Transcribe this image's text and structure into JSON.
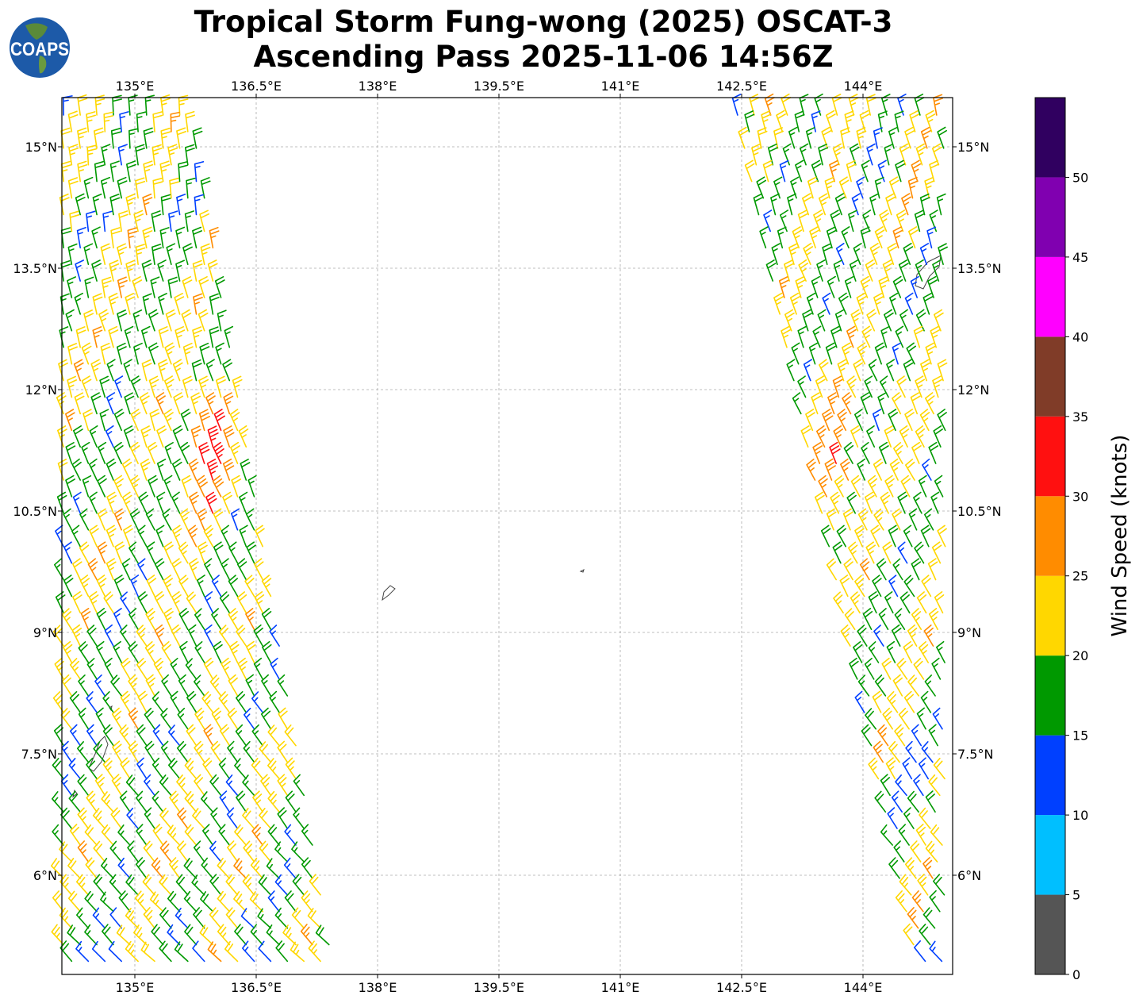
{
  "logo_text": "COAPS",
  "chart_data": {
    "type": "map-wind-barbs",
    "title_line1": "Tropical Storm Fung-wong (2025) OSCAT-3",
    "title_line2": "Ascending Pass 2025-11-06 14:56Z",
    "lon_range": [
      134.1,
      145.1
    ],
    "lat_range": [
      4.79,
      15.61
    ],
    "lon_ticks": [
      {
        "value": 135,
        "label": "135°E"
      },
      {
        "value": 136.5,
        "label": "136.5°E"
      },
      {
        "value": 138,
        "label": "138°E"
      },
      {
        "value": 139.5,
        "label": "139.5°E"
      },
      {
        "value": 141,
        "label": "141°E"
      },
      {
        "value": 142.5,
        "label": "142.5°E"
      },
      {
        "value": 144,
        "label": "144°E"
      }
    ],
    "lat_ticks": [
      {
        "value": 15,
        "label": "15°N"
      },
      {
        "value": 13.5,
        "label": "13.5°N"
      },
      {
        "value": 12,
        "label": "12°N"
      },
      {
        "value": 10.5,
        "label": "10.5°N"
      },
      {
        "value": 9,
        "label": "9°N"
      },
      {
        "value": 7.5,
        "label": "7.5°N"
      },
      {
        "value": 6,
        "label": "6°N"
      }
    ],
    "grid": true,
    "colorbar": {
      "label": "Wind Speed (knots)",
      "range": [
        0,
        55
      ],
      "bounds": [
        0,
        5,
        10,
        15,
        20,
        25,
        30,
        35,
        40,
        45,
        50,
        55
      ],
      "colors": [
        "#555555",
        "#00bfff",
        "#0040ff",
        "#009900",
        "#ffd700",
        "#ff8c00",
        "#ff1010",
        "#803c28",
        "#ff00ff",
        "#8000b0",
        "#300060"
      ],
      "ticks": [
        {
          "value": 0,
          "label": "0"
        },
        {
          "value": 5,
          "label": "5"
        },
        {
          "value": 10,
          "label": "10"
        },
        {
          "value": 15,
          "label": "15"
        },
        {
          "value": 20,
          "label": "20"
        },
        {
          "value": 25,
          "label": "25"
        },
        {
          "value": 30,
          "label": "30"
        },
        {
          "value": 35,
          "label": "35"
        },
        {
          "value": 40,
          "label": "40"
        },
        {
          "value": 45,
          "label": "45"
        },
        {
          "value": 50,
          "label": "50"
        }
      ]
    },
    "swaths": [
      {
        "name": "west",
        "lat_span": [
          4.9,
          15.5
        ],
        "west_edge_lon": [
          134.1,
          134.1
        ],
        "east_edge_lon_north_south": [
          135.7,
          137.5
        ],
        "typical_speed_kt": [
          15,
          25
        ],
        "max_speed_kt": 34,
        "max_near": {
          "lat": 11.3,
          "lon": 135.9
        }
      },
      {
        "name": "east",
        "lat_span": [
          4.9,
          15.5
        ],
        "west_edge_lon_north_south": [
          142.45,
          144.7
        ],
        "east_edge_lon": [
          145.05,
          145.05
        ],
        "typical_speed_kt": [
          15,
          25
        ],
        "max_speed_kt": 30,
        "max_near": {
          "lat": 11.0,
          "lon": 143.7
        }
      }
    ]
  }
}
